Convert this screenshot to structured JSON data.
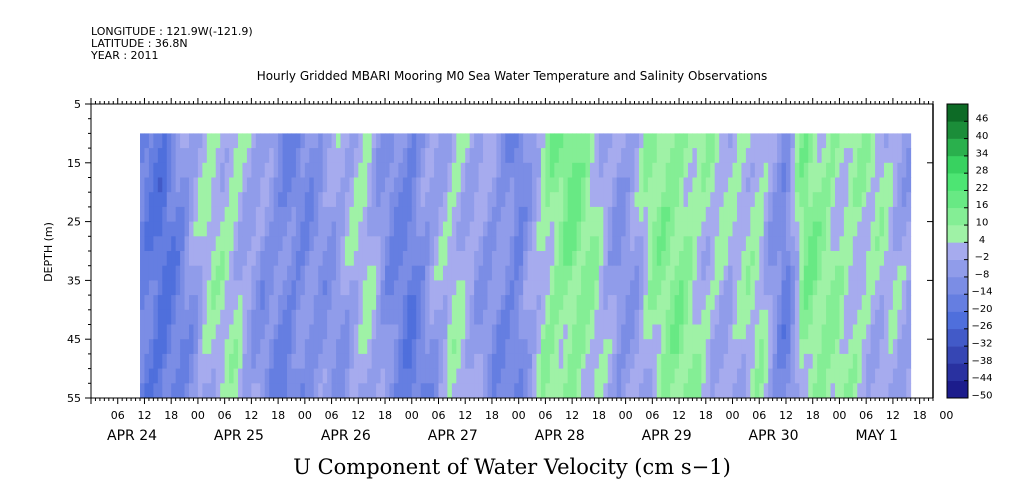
{
  "header": {
    "longitude": "LONGITUDE : 121.9W(-121.9)",
    "latitude": "LATITUDE : 36.8N",
    "year": "YEAR : 2011"
  },
  "chart_data": {
    "type": "heatmap",
    "title": "Hourly Gridded MBARI Mooring M0 Sea Water Temperature and Salinity Observations",
    "colorbar_title": "U Component of Water Velocity (cm s−1)",
    "ylabel": "DEPTH (m)",
    "ylim": [
      5,
      55
    ],
    "y_inverted": true,
    "yticks": [
      5,
      15,
      25,
      35,
      45,
      55
    ],
    "data_depth_range": [
      10,
      55
    ],
    "x_hours": [
      0,
      189
    ],
    "x_start_label": "APR 24 00",
    "data_x_range": [
      11,
      184
    ],
    "hour_ticks": [
      "06",
      "12",
      "18",
      "00",
      "06",
      "12",
      "18",
      "00",
      "06",
      "12",
      "18",
      "00",
      "06",
      "12",
      "18",
      "00",
      "06",
      "12",
      "18",
      "00",
      "06",
      "12",
      "18",
      "00",
      "06",
      "12",
      "18",
      "00",
      "06",
      "12",
      "18",
      "00"
    ],
    "day_labels": [
      "APR 24",
      "APR 25",
      "APR 26",
      "APR 27",
      "APR 28",
      "APR 29",
      "APR 30",
      "MAY 1"
    ],
    "colorbar_levels": [
      -50,
      -44,
      -38,
      -32,
      -26,
      -20,
      -14,
      -8,
      -2,
      4,
      10,
      16,
      22,
      28,
      34,
      40,
      46
    ],
    "colorbar_labels": [
      "46",
      "40",
      "34",
      "28",
      "22",
      "16",
      "10",
      "4",
      "−2",
      "−8",
      "−14",
      "−20",
      "−26",
      "−32",
      "−38",
      "−44",
      "−50"
    ],
    "colors": {
      "very_negative": "#1c1c8c",
      "negative": "#4f6fdc",
      "slight_negative": "#a6abee",
      "slight_positive": "#9ff2a6",
      "positive": "#3fe36a",
      "very_positive": "#0d6b26"
    },
    "time_profile": [
      {
        "t": 11,
        "v": -15
      },
      {
        "t": 16,
        "v": -20
      },
      {
        "t": 20,
        "v": -12
      },
      {
        "t": 26,
        "v": 3
      },
      {
        "t": 32,
        "v": 5
      },
      {
        "t": 38,
        "v": -6
      },
      {
        "t": 44,
        "v": -14
      },
      {
        "t": 50,
        "v": -8
      },
      {
        "t": 56,
        "v": -4
      },
      {
        "t": 62,
        "v": 3
      },
      {
        "t": 67,
        "v": -10
      },
      {
        "t": 72,
        "v": -16
      },
      {
        "t": 76,
        "v": -6
      },
      {
        "t": 82,
        "v": 4
      },
      {
        "t": 88,
        "v": -4
      },
      {
        "t": 96,
        "v": -14
      },
      {
        "t": 102,
        "v": 8
      },
      {
        "t": 108,
        "v": 14
      },
      {
        "t": 114,
        "v": 4
      },
      {
        "t": 118,
        "v": -6
      },
      {
        "t": 122,
        "v": -4
      },
      {
        "t": 126,
        "v": 8
      },
      {
        "t": 132,
        "v": 12
      },
      {
        "t": 138,
        "v": 4
      },
      {
        "t": 144,
        "v": 0
      },
      {
        "t": 150,
        "v": 6
      },
      {
        "t": 156,
        "v": -14
      },
      {
        "t": 160,
        "v": 12
      },
      {
        "t": 166,
        "v": 8
      },
      {
        "t": 172,
        "v": 6
      },
      {
        "t": 178,
        "v": 2
      },
      {
        "t": 184,
        "v": -4
      }
    ]
  }
}
